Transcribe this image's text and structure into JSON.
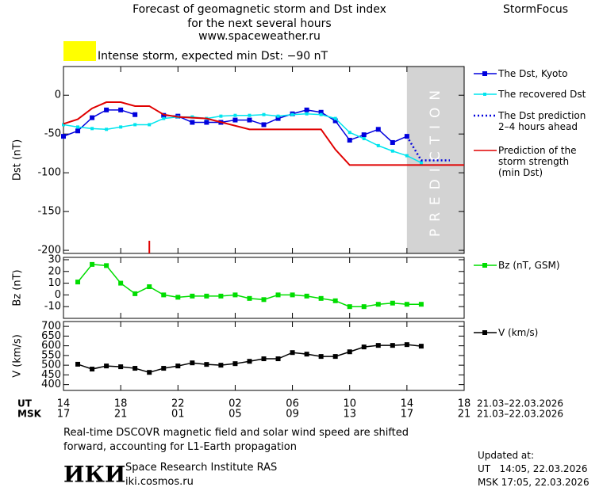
{
  "header": {
    "title_lines": [
      "Forecast of geomagnetic storm and Dst index",
      "for the next several hours",
      "www.spaceweather.ru"
    ],
    "brand": "StormFocus"
  },
  "storm_legend": {
    "color": "#ffff00",
    "text": "Intense storm, expected min Dst: −90 nT"
  },
  "chart_data": [
    {
      "type": "line",
      "ylabel": "Dst (nT)",
      "xlim": [
        14,
        42
      ],
      "ylim": [
        -204,
        37
      ],
      "yticks": [
        -200,
        -150,
        -100,
        -50,
        0
      ],
      "prediction_region": [
        38,
        42
      ],
      "prediction_label": "PREDICTION",
      "event_marker_x": 20,
      "series": [
        {
          "name": "The Dst, Kyoto",
          "color": "#0000dd",
          "marker": "square",
          "dash": false,
          "x": [
            14,
            15,
            16,
            17,
            18,
            19,
            20,
            21,
            22,
            23,
            24,
            25,
            26,
            27,
            28,
            29,
            30,
            31,
            32,
            33,
            34,
            35,
            36,
            37,
            38
          ],
          "values": [
            -53,
            -46,
            -29,
            -19,
            -19,
            -25,
            null,
            -26,
            -27,
            -35,
            -35,
            -35,
            -32,
            -32,
            -38,
            -30,
            -24,
            -19,
            -22,
            -33,
            -58,
            -51,
            -44,
            -61,
            -53
          ]
        },
        {
          "name": "The recovered Dst",
          "color": "#00e5ee",
          "marker": "small-square",
          "dash": false,
          "x": [
            14,
            15,
            16,
            17,
            18,
            19,
            20,
            21,
            22,
            23,
            24,
            25,
            26,
            27,
            28,
            29,
            30,
            31,
            32,
            33,
            34,
            35,
            36,
            37,
            38,
            39
          ],
          "values": [
            -38,
            -41,
            -43,
            -44,
            -41,
            -38,
            -38,
            -30,
            -28,
            -28,
            -30,
            -27,
            -26,
            -26,
            -25,
            -27,
            -25,
            -24,
            -25,
            -30,
            -48,
            -56,
            -65,
            -72,
            -78,
            -87
          ]
        },
        {
          "name": "The Dst prediction 2–4 hours ahead",
          "color": "#0000dd",
          "marker": "none",
          "dash": true,
          "x": [
            38,
            39,
            41
          ],
          "values": [
            -53,
            -84,
            -84
          ]
        },
        {
          "name": "Prediction of the storm strength (min Dst)",
          "color": "#e00000",
          "marker": "none",
          "dash": false,
          "x": [
            14,
            15,
            16,
            17,
            18,
            19,
            20,
            21,
            22,
            24,
            27,
            32,
            33,
            34,
            42
          ],
          "values": [
            -37,
            -31,
            -17,
            -9,
            -9,
            -14,
            -14,
            -25,
            -28,
            -30,
            -44,
            -44,
            -70,
            -90,
            -90
          ]
        }
      ]
    },
    {
      "type": "line",
      "ylabel": "Bz (nT)",
      "xlim": [
        14,
        42
      ],
      "ylim": [
        -20,
        32
      ],
      "yticks": [
        -10,
        0,
        10,
        20,
        30
      ],
      "series": [
        {
          "name": "Bz (nT, GSM)",
          "color": "#00dd00",
          "marker": "square",
          "dash": false,
          "x": [
            15,
            16,
            17,
            18,
            19,
            20,
            21,
            22,
            23,
            24,
            25,
            26,
            27,
            28,
            29,
            30,
            31,
            32,
            33,
            34,
            35,
            36,
            37,
            38,
            39
          ],
          "values": [
            11,
            26,
            25,
            10,
            1,
            7,
            0,
            -2,
            -1,
            -1,
            -1,
            0,
            -3,
            -4,
            0,
            0,
            -1,
            -3,
            -5,
            -10,
            -10,
            -8,
            -7,
            -8,
            -8
          ]
        }
      ]
    },
    {
      "type": "line",
      "ylabel": "V (km/s)",
      "xlim": [
        14,
        42
      ],
      "ylim": [
        370,
        725
      ],
      "yticks": [
        400,
        450,
        500,
        550,
        600,
        650,
        700
      ],
      "xticks": [
        14,
        18,
        22,
        {
          "value": 26,
          "label": "02"
        },
        {
          "value": 30,
          "label": "06"
        },
        {
          "value": 34,
          "label": "10"
        },
        {
          "value": 38,
          "label": "14"
        },
        {
          "value": 42,
          "label": "18"
        }
      ],
      "time_axis": {
        "ut_label": "UT",
        "msk_label": "MSK",
        "msk_ticks": [
          "17",
          "21",
          "01",
          "05",
          "09",
          "13",
          "17",
          "21"
        ],
        "date_range_ut": "21.03–22.03.2026",
        "date_range_msk": "21.03–22.03.2026"
      },
      "series": [
        {
          "name": "V (km/s)",
          "color": "#000000",
          "marker": "square",
          "dash": false,
          "x": [
            15,
            16,
            17,
            18,
            19,
            20,
            21,
            22,
            23,
            24,
            25,
            26,
            27,
            28,
            29,
            30,
            31,
            32,
            33,
            34,
            35,
            36,
            37,
            38,
            39
          ],
          "values": [
            505,
            480,
            496,
            492,
            484,
            463,
            484,
            496,
            512,
            504,
            500,
            508,
            520,
            533,
            533,
            565,
            557,
            545,
            545,
            569,
            594,
            602,
            602,
            606,
            598
          ]
        }
      ]
    }
  ],
  "footer": {
    "note_lines": [
      "Real-time DSCOVR magnetic field and solar wind speed are shifted",
      "forward, accounting for L1-Earth propagation"
    ],
    "logo": "ИКИ",
    "institute": "Space Research Institute RAS",
    "website": "iki.cosmos.ru",
    "updated_label": "Updated at:",
    "updated_ut": "UT   14:05, 22.03.2026",
    "updated_msk": "MSK 17:05, 22.03.2026"
  }
}
